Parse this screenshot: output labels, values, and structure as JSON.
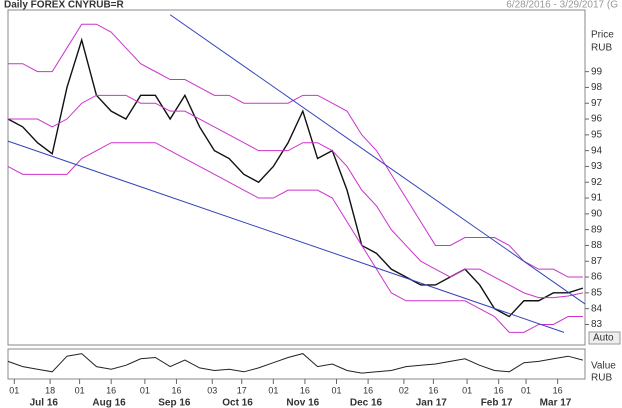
{
  "chart_data": {
    "type": "line",
    "title": "Daily FOREX CNYRUB=R",
    "subtitle": "6/28/2016 - 3/29/2017 (G",
    "y_axis_label": "Price",
    "y_axis_unit": "RUB",
    "scale_button": "Auto",
    "lower_panel_label": "Value",
    "lower_panel_unit": "RUB",
    "xlim": [
      "2016-06-28",
      "2017-03-29"
    ],
    "x": [
      "2016-06-28",
      "2016-07-05",
      "2016-07-12",
      "2016-07-19",
      "2016-07-26",
      "2016-08-02",
      "2016-08-09",
      "2016-08-16",
      "2016-08-23",
      "2016-08-30",
      "2016-09-06",
      "2016-09-13",
      "2016-09-20",
      "2016-09-27",
      "2016-10-04",
      "2016-10-11",
      "2016-10-18",
      "2016-10-25",
      "2016-11-01",
      "2016-11-08",
      "2016-11-15",
      "2016-11-22",
      "2016-11-29",
      "2016-12-06",
      "2016-12-13",
      "2016-12-20",
      "2016-12-27",
      "2017-01-03",
      "2017-01-10",
      "2017-01-17",
      "2017-01-24",
      "2017-01-31",
      "2017-02-07",
      "2017-02-14",
      "2017-02-21",
      "2017-02-28",
      "2017-03-07",
      "2017-03-14",
      "2017-03-21",
      "2017-03-28"
    ],
    "series": [
      {
        "color": "#111111",
        "values": [
          96,
          95.5,
          94.5,
          93.8,
          98,
          101,
          97.5,
          96.5,
          96,
          97.5,
          97.5,
          96,
          97.5,
          95.5,
          94,
          93.5,
          92.5,
          92,
          93,
          94.5,
          96.5,
          93.5,
          94,
          91.5,
          88,
          87.5,
          86.5,
          86,
          85.5,
          85.5,
          86,
          86.5,
          85.5,
          84,
          83.5,
          84.5,
          84.5,
          85,
          85,
          85.3
        ]
      },
      {
        "color": "#cc33cc",
        "values": [
          99.5,
          99.5,
          99,
          99,
          100.5,
          102,
          102,
          101.5,
          100.5,
          99.5,
          99,
          98.5,
          98.5,
          98,
          97.5,
          97.5,
          97,
          97,
          97,
          97,
          97.5,
          97.5,
          97,
          96.5,
          95,
          94,
          92.5,
          91,
          89.5,
          88,
          88,
          88.5,
          88.5,
          88.5,
          88,
          87,
          86.5,
          86.5,
          86,
          86
        ]
      },
      {
        "color": "#cc33cc",
        "values": [
          96,
          96,
          96,
          95.5,
          96,
          97,
          97.5,
          97.5,
          97.5,
          97,
          97,
          96.5,
          96.5,
          96,
          95.5,
          95,
          94.5,
          94,
          94,
          94,
          94.5,
          94.5,
          94,
          93,
          91.5,
          90.5,
          89,
          88,
          87,
          86.5,
          86,
          86.5,
          86.5,
          86,
          85.5,
          85,
          84.7,
          84.7,
          84.8,
          85
        ]
      },
      {
        "color": "#cc33cc",
        "values": [
          93,
          92.5,
          92.5,
          92.5,
          92.5,
          93.5,
          94,
          94.5,
          94.5,
          94.5,
          94.5,
          94,
          93.5,
          93,
          92.5,
          92,
          91.5,
          91,
          91,
          91.5,
          91.5,
          91.5,
          91,
          89.5,
          88,
          86.5,
          85,
          84.5,
          84.5,
          84.5,
          84.5,
          84.5,
          84,
          83.5,
          82.5,
          82.5,
          83,
          83,
          83.5,
          83.5
        ]
      }
    ],
    "trendlines": [
      {
        "color": "#3344bb",
        "x": [
          "2016-09-13",
          "2017-03-29"
        ],
        "values": [
          102.6,
          84.3
        ]
      },
      {
        "color": "#3344bb",
        "x": [
          "2016-06-28",
          "2017-03-19"
        ],
        "values": [
          94.6,
          82.5
        ]
      }
    ],
    "ylim": [
      81.7,
      102.9
    ],
    "yticks": [
      83,
      84,
      85,
      86,
      87,
      88,
      89,
      90,
      91,
      92,
      93,
      94,
      95,
      96,
      97,
      98,
      99
    ],
    "oscillator": {
      "color": "#222222",
      "ylim": [
        0,
        100
      ],
      "values": [
        60,
        40,
        30,
        20,
        80,
        90,
        40,
        30,
        45,
        70,
        75,
        40,
        65,
        35,
        25,
        30,
        20,
        35,
        55,
        75,
        90,
        40,
        50,
        25,
        15,
        20,
        25,
        40,
        45,
        50,
        60,
        70,
        45,
        25,
        20,
        55,
        60,
        70,
        80,
        65
      ]
    },
    "xticks": [
      {
        "value": "2016-07-01",
        "label": "01"
      },
      {
        "value": "2016-07-18",
        "label": "18"
      },
      {
        "value": "2016-08-01",
        "label": "01"
      },
      {
        "value": "2016-08-16",
        "label": "16"
      },
      {
        "value": "2016-09-01",
        "label": "01"
      },
      {
        "value": "2016-09-16",
        "label": "16"
      },
      {
        "value": "2016-10-03",
        "label": "03"
      },
      {
        "value": "2016-10-17",
        "label": "17"
      },
      {
        "value": "2016-11-01",
        "label": "01"
      },
      {
        "value": "2016-11-16",
        "label": "16"
      },
      {
        "value": "2016-12-01",
        "label": "01"
      },
      {
        "value": "2016-12-16",
        "label": "16"
      },
      {
        "value": "2017-01-02",
        "label": "02"
      },
      {
        "value": "2017-01-16",
        "label": "16"
      },
      {
        "value": "2017-02-01",
        "label": "01"
      },
      {
        "value": "2017-02-16",
        "label": "16"
      },
      {
        "value": "2017-03-01",
        "label": "01"
      },
      {
        "value": "2017-03-16",
        "label": "16"
      }
    ],
    "month_labels": [
      {
        "value": "2016-07",
        "label": "Jul 16"
      },
      {
        "value": "2016-08",
        "label": "Aug 16"
      },
      {
        "value": "2016-09",
        "label": "Sep 16"
      },
      {
        "value": "2016-10",
        "label": "Oct 16"
      },
      {
        "value": "2016-11",
        "label": "Nov 16"
      },
      {
        "value": "2016-12",
        "label": "Dec 16"
      },
      {
        "value": "2017-01",
        "label": "Jan 17"
      },
      {
        "value": "2017-02",
        "label": "Feb 17"
      },
      {
        "value": "2017-03",
        "label": "Mar 17"
      }
    ]
  }
}
